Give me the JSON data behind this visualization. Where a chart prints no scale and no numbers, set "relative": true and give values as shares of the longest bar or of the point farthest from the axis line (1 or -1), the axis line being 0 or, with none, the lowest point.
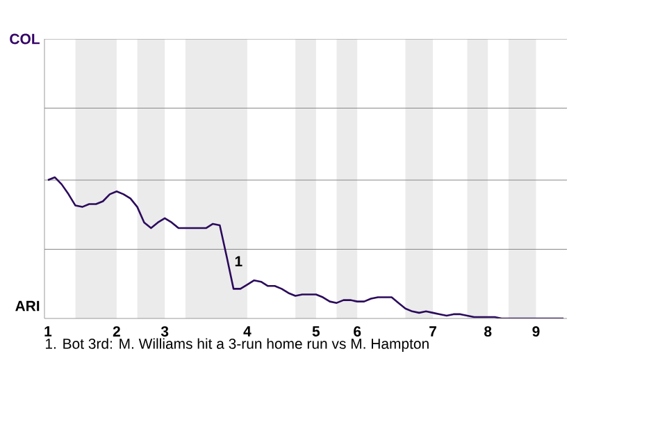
{
  "chart_data": {
    "type": "line",
    "relative": true,
    "categories": [
      "1",
      null,
      null,
      null,
      null,
      null,
      null,
      null,
      null,
      null,
      "2",
      null,
      null,
      null,
      null,
      null,
      null,
      "3",
      null,
      null,
      null,
      null,
      null,
      null,
      null,
      null,
      null,
      null,
      null,
      "4",
      null,
      null,
      null,
      null,
      null,
      null,
      null,
      null,
      null,
      "5",
      null,
      null,
      null,
      null,
      null,
      "6",
      null,
      null,
      null,
      null,
      null,
      null,
      null,
      null,
      null,
      null,
      "7",
      null,
      null,
      null,
      null,
      null,
      null,
      null,
      "8",
      null,
      null,
      null,
      null,
      null,
      null,
      "9",
      null,
      null,
      null,
      null
    ],
    "marker": "none",
    "line_style": "solid",
    "ref_lines": [
      {
        "axis": "y",
        "value": 0.49,
        "color": "#888888"
      },
      {
        "axis": "y",
        "value": 0.98,
        "color": "#888888"
      },
      {
        "axis": "y",
        "value": 1.49,
        "color": "#888888"
      },
      {
        "axis": "y",
        "value": 1.98,
        "color": "#888888"
      }
    ],
    "series": [
      {
        "color": "#2b0a5c",
        "values": [
          0.98,
          1,
          0.95,
          0.88,
          0.8,
          0.79,
          0.81,
          0.81,
          0.83,
          0.88,
          0.9,
          0.88,
          0.85,
          0.79,
          0.68,
          0.64,
          0.68,
          0.71,
          0.68,
          0.64,
          0.64,
          0.64,
          0.64,
          0.64,
          0.67,
          0.66,
          0.44,
          0.21,
          0.21,
          0.24,
          0.27,
          0.26,
          0.23,
          0.23,
          0.21,
          0.18,
          0.16,
          0.17,
          0.17,
          0.17,
          0.15,
          0.12,
          0.11,
          0.13,
          0.13,
          0.12,
          0.12,
          0.14,
          0.15,
          0.15,
          0.15,
          0.11,
          0.07,
          0.05,
          0.04,
          0.05,
          0.04,
          0.03,
          0.02,
          0.03,
          0.03,
          0.02,
          0.01,
          0.01,
          0.01,
          0.01,
          0,
          0,
          0,
          0,
          0,
          0,
          0,
          0,
          0,
          0
        ]
      }
    ],
    "annotations": [
      "COL",
      "ARI",
      "1",
      "1. Bot 3rd: M. Williams hit a 3-run home run vs M. Hampton"
    ]
  }
}
